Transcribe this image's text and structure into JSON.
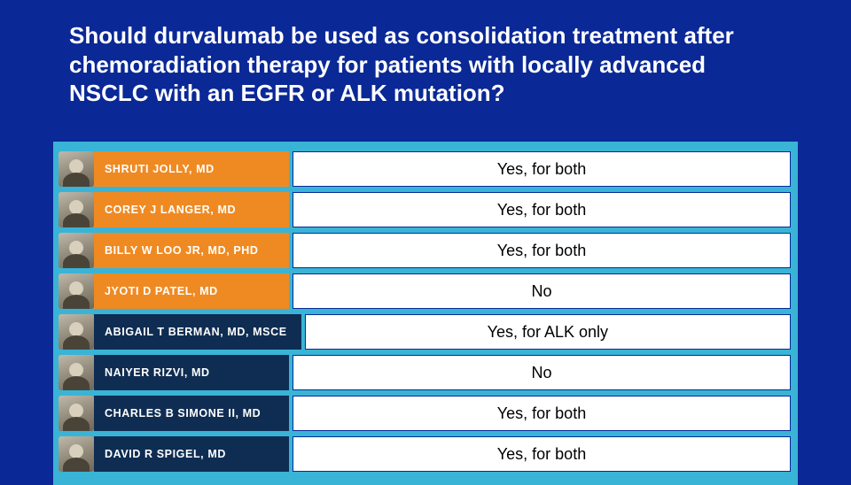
{
  "title": "Should durvalumab be used as consolidation treatment after chemoradiation therapy for patients with locally advanced NSCLC with an EGFR or ALK mutation?",
  "colors": {
    "background": "#0a2896",
    "panel_bg": "#39b4d6",
    "chip_orange": "#ef8a23",
    "chip_navy": "#0f2d52",
    "title_text": "#ffffff",
    "answer_bg": "#ffffff",
    "answer_border": "#0a2896"
  },
  "rows": [
    {
      "name": "SHRUTI JOLLY, MD",
      "chip": "orange",
      "answer": "Yes, for both"
    },
    {
      "name": "COREY J LANGER, MD",
      "chip": "orange",
      "answer": "Yes, for both"
    },
    {
      "name": "BILLY W LOO JR, MD, PHD",
      "chip": "orange",
      "answer": "Yes, for both"
    },
    {
      "name": "JYOTI D PATEL, MD",
      "chip": "orange",
      "answer": "No"
    },
    {
      "name": "ABIGAIL T BERMAN, MD, MSCE",
      "chip": "navy",
      "answer": "Yes, for ALK only"
    },
    {
      "name": "NAIYER RIZVI, MD",
      "chip": "navy",
      "answer": "No"
    },
    {
      "name": "CHARLES B SIMONE II, MD",
      "chip": "navy",
      "answer": "Yes, for both"
    },
    {
      "name": "DAVID R SPIGEL, MD",
      "chip": "navy",
      "answer": "Yes, for both"
    }
  ]
}
